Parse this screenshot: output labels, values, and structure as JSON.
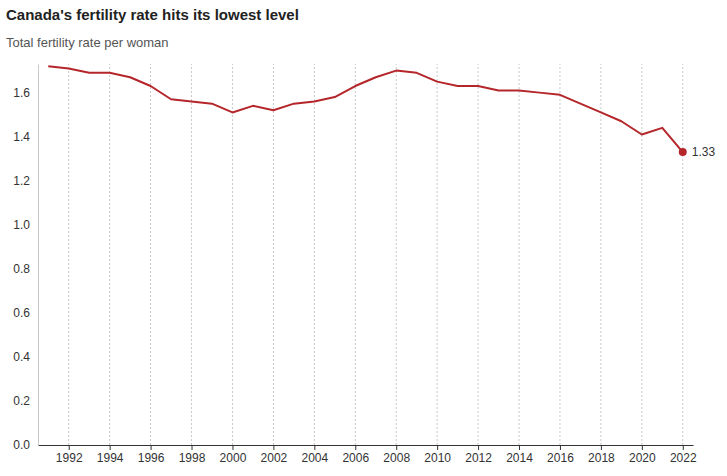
{
  "chart_data": {
    "type": "line",
    "title": "Canada's fertility rate hits its lowest level",
    "subtitle": "Total fertility rate per woman",
    "x": [
      1991,
      1992,
      1993,
      1994,
      1995,
      1996,
      1997,
      1998,
      1999,
      2000,
      2001,
      2002,
      2003,
      2004,
      2005,
      2006,
      2007,
      2008,
      2009,
      2010,
      2011,
      2012,
      2013,
      2014,
      2015,
      2016,
      2017,
      2018,
      2019,
      2020,
      2021,
      2022
    ],
    "values": [
      1.72,
      1.71,
      1.69,
      1.69,
      1.67,
      1.63,
      1.57,
      1.56,
      1.55,
      1.51,
      1.54,
      1.52,
      1.55,
      1.56,
      1.58,
      1.63,
      1.67,
      1.7,
      1.69,
      1.65,
      1.63,
      1.63,
      1.61,
      1.61,
      1.6,
      1.59,
      1.55,
      1.51,
      1.47,
      1.41,
      1.44,
      1.33
    ],
    "color": "#b5262b",
    "xlim": [
      1990.5,
      2022.5
    ],
    "xticks": [
      1992,
      1994,
      1996,
      1998,
      2000,
      2002,
      2004,
      2006,
      2008,
      2010,
      2012,
      2014,
      2016,
      2018,
      2020,
      2022
    ],
    "ylim": [
      0,
      1.73
    ],
    "yticks": [
      {
        "value": 0,
        "label": "0.0"
      },
      0.2,
      0.4,
      0.6,
      0.8,
      {
        "value": 1,
        "label": "1.0"
      },
      1.2,
      1.4,
      1.6
    ],
    "grid": true,
    "annotations": [
      {
        "x": 2022,
        "y": 1.33,
        "text": "1.33"
      }
    ]
  }
}
